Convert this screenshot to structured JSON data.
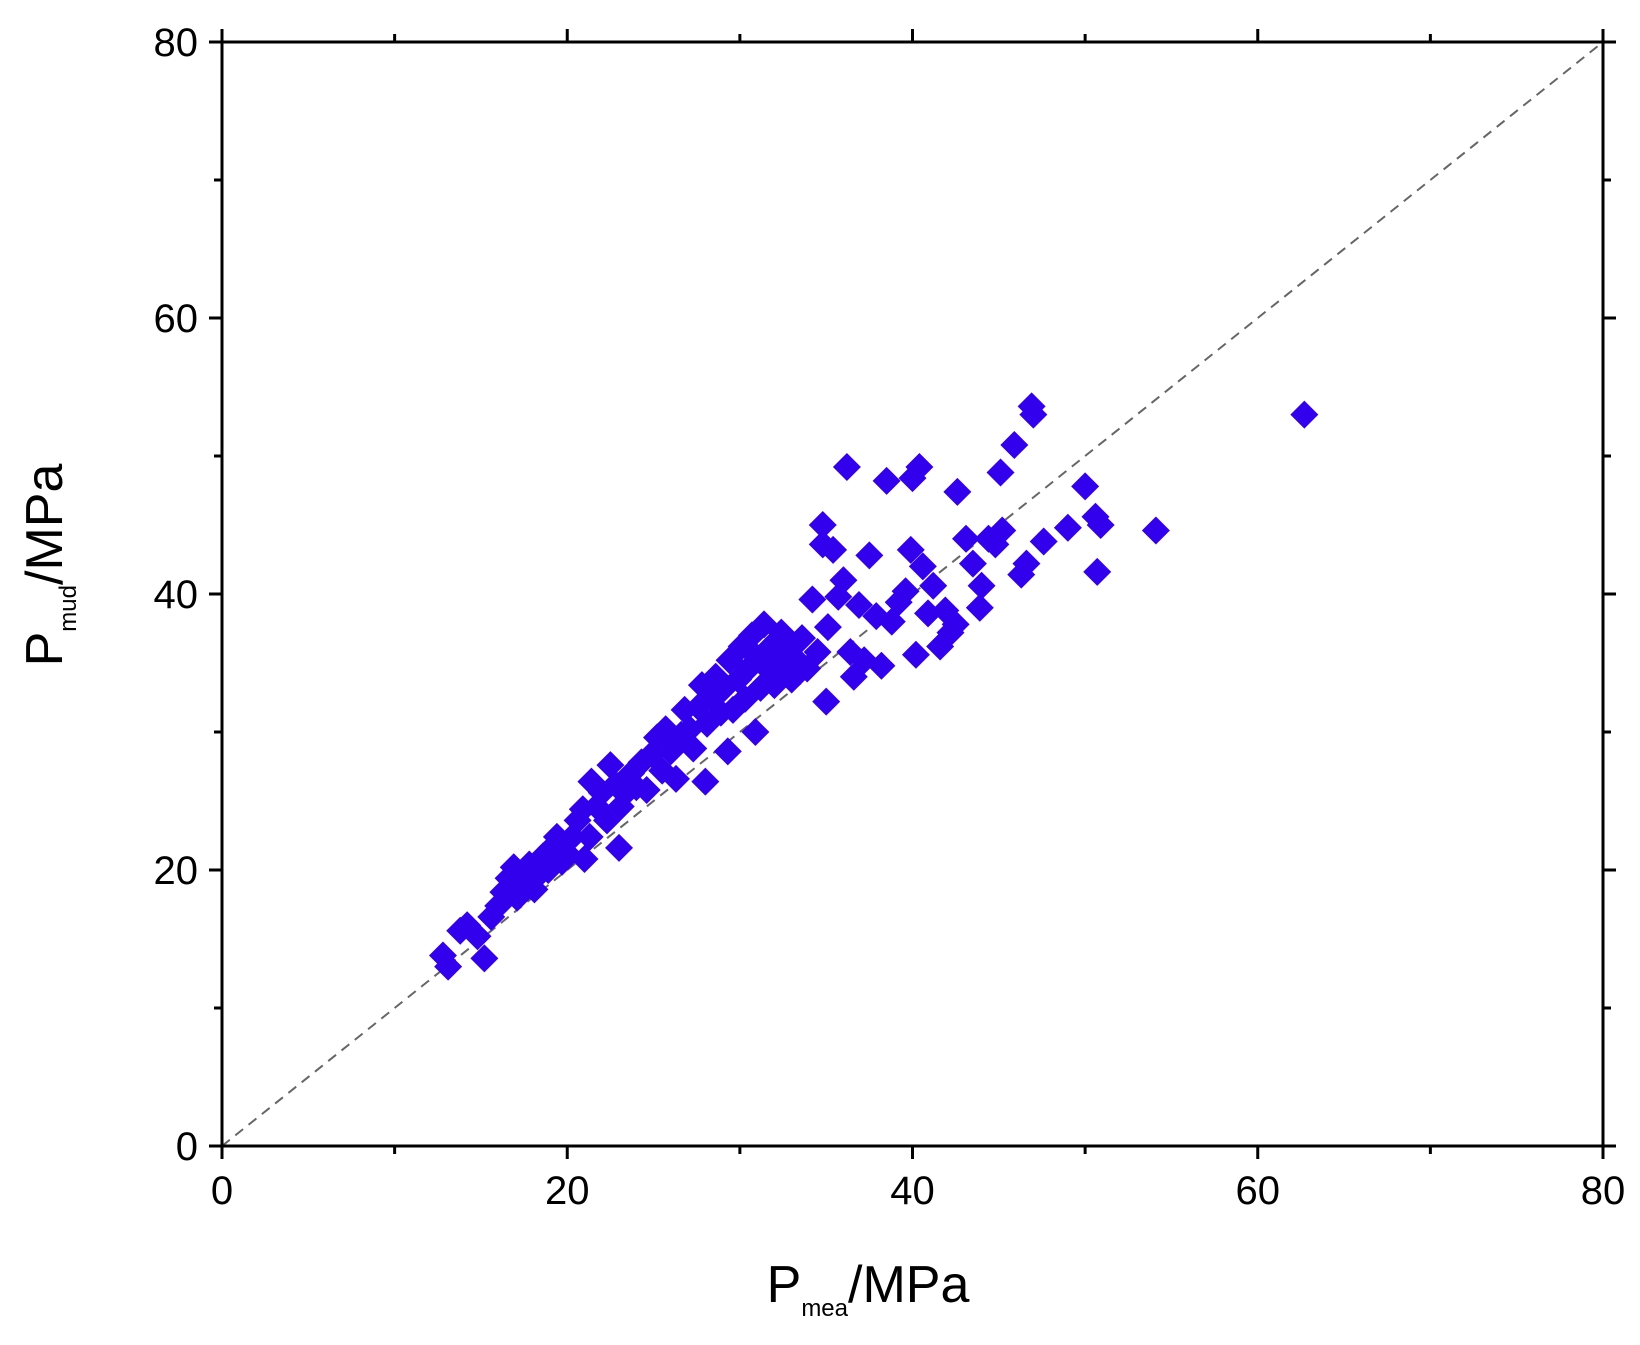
{
  "chart_data": {
    "type": "scatter",
    "xlabel": {
      "main": "P",
      "sub": "mea",
      "unit": "/MPa"
    },
    "ylabel": {
      "main": "P",
      "sub": "mud",
      "unit": "/MPa"
    },
    "xlim": [
      0,
      80
    ],
    "ylim": [
      0,
      80
    ],
    "x_ticks": [
      0,
      20,
      40,
      60,
      80
    ],
    "y_ticks": [
      0,
      20,
      40,
      60,
      80
    ],
    "minor_step": 10,
    "grid": false,
    "legend": "none",
    "reference_line": {
      "style": "dashed",
      "from": [
        0,
        0
      ],
      "to": [
        80,
        80
      ],
      "color": "#666666"
    },
    "marker": {
      "shape": "diamond",
      "color": "#3300ee"
    },
    "points": [
      [
        12.8,
        13.8
      ],
      [
        13.1,
        13.0
      ],
      [
        13.8,
        15.6
      ],
      [
        14.2,
        16.0
      ],
      [
        14.8,
        15.2
      ],
      [
        15.2,
        13.6
      ],
      [
        15.6,
        16.6
      ],
      [
        16.0,
        17.4
      ],
      [
        16.3,
        18.4
      ],
      [
        16.6,
        19.4
      ],
      [
        16.9,
        20.2
      ],
      [
        17.1,
        18.0
      ],
      [
        17.4,
        19.0
      ],
      [
        17.8,
        20.4
      ],
      [
        18.1,
        18.6
      ],
      [
        18.3,
        19.6
      ],
      [
        18.6,
        21.0
      ],
      [
        18.9,
        20.0
      ],
      [
        19.1,
        21.6
      ],
      [
        19.4,
        22.4
      ],
      [
        19.7,
        20.6
      ],
      [
        20.0,
        21.2
      ],
      [
        20.3,
        22.4
      ],
      [
        20.6,
        23.6
      ],
      [
        20.9,
        24.4
      ],
      [
        21.0,
        20.8
      ],
      [
        21.3,
        22.4
      ],
      [
        21.4,
        26.4
      ],
      [
        21.7,
        24.6
      ],
      [
        22.0,
        25.6
      ],
      [
        22.3,
        23.6
      ],
      [
        22.5,
        27.6
      ],
      [
        22.8,
        26.2
      ],
      [
        23.0,
        21.6
      ],
      [
        23.1,
        24.6
      ],
      [
        23.4,
        25.6
      ],
      [
        23.7,
        27.0
      ],
      [
        24.0,
        26.0
      ],
      [
        24.3,
        27.8
      ],
      [
        24.6,
        25.8
      ],
      [
        24.9,
        28.4
      ],
      [
        25.2,
        29.6
      ],
      [
        25.5,
        27.2
      ],
      [
        25.7,
        30.2
      ],
      [
        26.0,
        28.6
      ],
      [
        26.3,
        26.6
      ],
      [
        26.6,
        29.8
      ],
      [
        26.8,
        31.6
      ],
      [
        27.1,
        30.2
      ],
      [
        27.3,
        28.8
      ],
      [
        27.6,
        31.8
      ],
      [
        27.8,
        33.4
      ],
      [
        28.0,
        26.4
      ],
      [
        28.1,
        30.6
      ],
      [
        28.4,
        32.4
      ],
      [
        28.6,
        34.0
      ],
      [
        28.9,
        31.4
      ],
      [
        29.1,
        33.2
      ],
      [
        29.3,
        28.6
      ],
      [
        29.4,
        35.2
      ],
      [
        29.6,
        31.6
      ],
      [
        29.9,
        33.8
      ],
      [
        30.1,
        36.2
      ],
      [
        30.3,
        32.4
      ],
      [
        30.5,
        34.6
      ],
      [
        30.7,
        37.0
      ],
      [
        30.9,
        30.0
      ],
      [
        31.0,
        35.4
      ],
      [
        31.2,
        33.2
      ],
      [
        31.4,
        37.8
      ],
      [
        31.6,
        34.6
      ],
      [
        31.8,
        36.2
      ],
      [
        32.0,
        33.4
      ],
      [
        32.2,
        35.6
      ],
      [
        32.4,
        37.2
      ],
      [
        32.6,
        34.4
      ],
      [
        32.8,
        36.4
      ],
      [
        33.0,
        33.8
      ],
      [
        33.3,
        35.2
      ],
      [
        33.6,
        36.8
      ],
      [
        33.9,
        34.6
      ],
      [
        34.2,
        39.6
      ],
      [
        34.5,
        35.8
      ],
      [
        34.8,
        45.0
      ],
      [
        34.8,
        43.6
      ],
      [
        35.0,
        32.2
      ],
      [
        35.1,
        37.6
      ],
      [
        35.4,
        43.2
      ],
      [
        35.7,
        39.8
      ],
      [
        36.0,
        41.0
      ],
      [
        36.2,
        49.2
      ],
      [
        36.4,
        35.8
      ],
      [
        36.6,
        34.0
      ],
      [
        36.9,
        39.2
      ],
      [
        37.2,
        35.2
      ],
      [
        37.5,
        42.8
      ],
      [
        37.9,
        38.4
      ],
      [
        38.2,
        34.8
      ],
      [
        38.5,
        48.2
      ],
      [
        38.8,
        38.0
      ],
      [
        39.2,
        39.4
      ],
      [
        39.6,
        40.2
      ],
      [
        39.9,
        43.2
      ],
      [
        40.0,
        48.4
      ],
      [
        40.2,
        35.6
      ],
      [
        40.4,
        49.2
      ],
      [
        40.6,
        42.0
      ],
      [
        40.9,
        38.6
      ],
      [
        41.2,
        40.6
      ],
      [
        41.6,
        36.2
      ],
      [
        41.9,
        38.8
      ],
      [
        42.2,
        37.2
      ],
      [
        42.5,
        37.8
      ],
      [
        42.6,
        47.4
      ],
      [
        43.1,
        44.0
      ],
      [
        43.5,
        42.2
      ],
      [
        43.9,
        39.0
      ],
      [
        44.0,
        40.6
      ],
      [
        44.4,
        44.0
      ],
      [
        44.8,
        43.6
      ],
      [
        45.2,
        44.6
      ],
      [
        45.1,
        48.8
      ],
      [
        45.9,
        50.8
      ],
      [
        46.3,
        41.4
      ],
      [
        46.6,
        42.2
      ],
      [
        46.9,
        53.6
      ],
      [
        47.0,
        53.0
      ],
      [
        47.6,
        43.8
      ],
      [
        49.0,
        44.8
      ],
      [
        50.0,
        47.8
      ],
      [
        50.6,
        45.6
      ],
      [
        50.7,
        41.6
      ],
      [
        50.9,
        45.0
      ],
      [
        54.1,
        44.6
      ],
      [
        62.7,
        53.0
      ]
    ]
  }
}
